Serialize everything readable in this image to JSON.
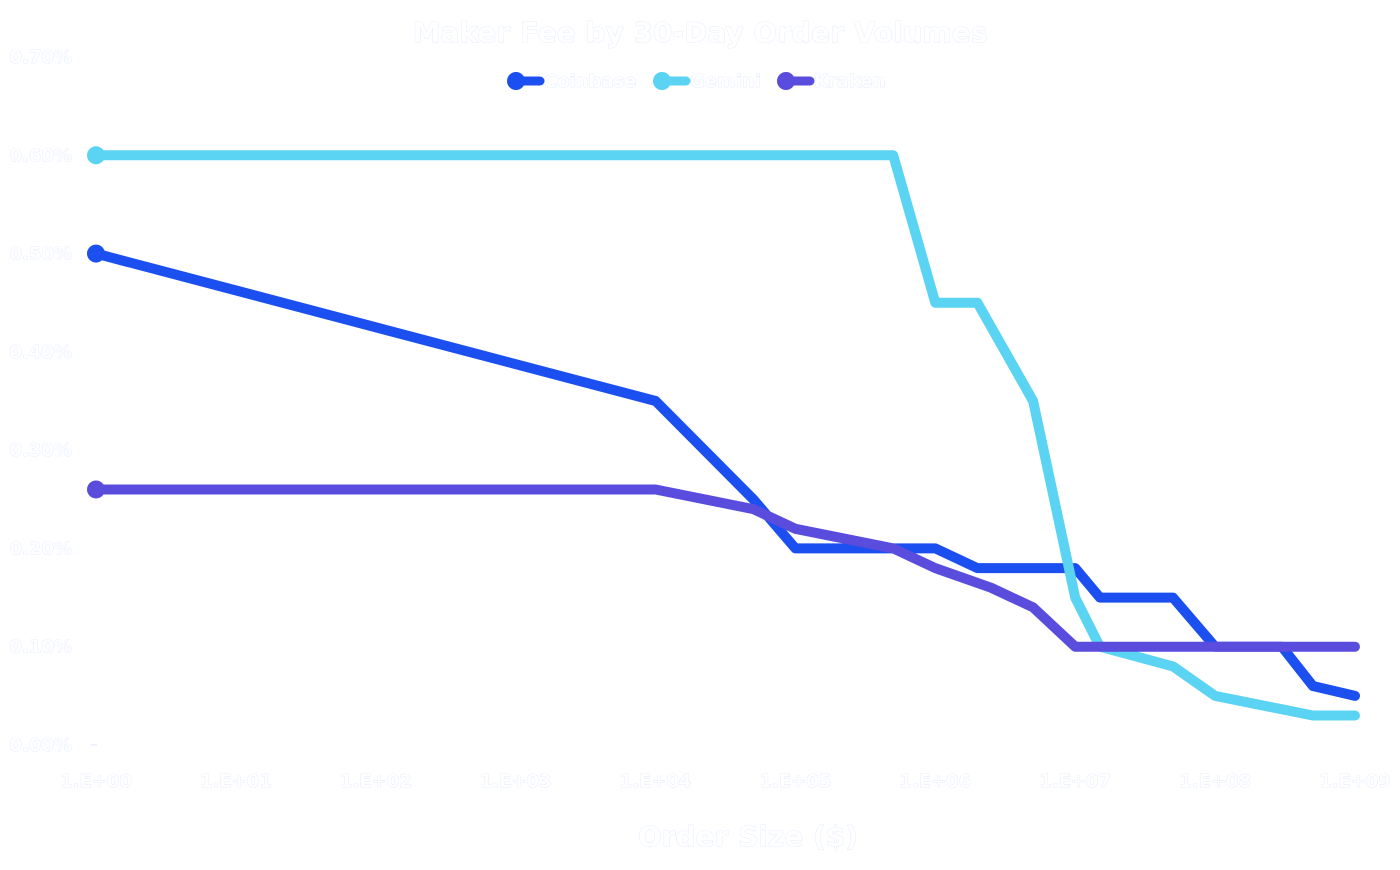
{
  "chart_data": {
    "type": "line",
    "title": "Maker Fee by 30-Day Order Volumes",
    "xlabel": "Order Size ($)",
    "ylabel": "",
    "x_scale": "log",
    "xlim": [
      1,
      1000000000
    ],
    "ylim": [
      0,
      0.007
    ],
    "x_ticks": [
      "1.E+00",
      "1.E+01",
      "1.E+02",
      "1.E+03",
      "1.E+04",
      "1.E+05",
      "1.E+06",
      "1.E+07",
      "1.E+08",
      "1.E+09"
    ],
    "y_ticks": [
      "0.00%",
      "0.10%",
      "0.20%",
      "0.30%",
      "0.40%",
      "0.50%",
      "0.60%",
      "0.70%"
    ],
    "legend_position": "top-center",
    "series": [
      {
        "name": "Coinbase",
        "color": "#1c4ff0",
        "points": [
          [
            1,
            0.005
          ],
          [
            10000,
            0.0035
          ],
          [
            50000,
            0.0025
          ],
          [
            100000,
            0.002
          ],
          [
            1000000,
            0.002
          ],
          [
            2000000,
            0.0018
          ],
          [
            10000000,
            0.0018
          ],
          [
            15000000,
            0.0015
          ],
          [
            50000000,
            0.0015
          ],
          [
            100000000,
            0.001
          ],
          [
            300000000,
            0.001
          ],
          [
            500000000,
            0.0006
          ],
          [
            1000000000,
            0.0005
          ]
        ]
      },
      {
        "name": "Gemini",
        "color": "#5ad4f2",
        "points": [
          [
            1,
            0.006
          ],
          [
            500000,
            0.006
          ],
          [
            1000000,
            0.0045
          ],
          [
            2000000,
            0.0045
          ],
          [
            5000000,
            0.0035
          ],
          [
            10000000,
            0.0015
          ],
          [
            15000000,
            0.001
          ],
          [
            50000000,
            0.0008
          ],
          [
            100000000,
            0.0005
          ],
          [
            500000000,
            0.0003
          ],
          [
            1000000000,
            0.0003
          ]
        ]
      },
      {
        "name": "Kraken",
        "color": "#5a4cdc",
        "points": [
          [
            1,
            0.0026
          ],
          [
            10000,
            0.0026
          ],
          [
            50000,
            0.0024
          ],
          [
            100000,
            0.0022
          ],
          [
            500000,
            0.002
          ],
          [
            1000000,
            0.0018
          ],
          [
            2500000,
            0.0016
          ],
          [
            5000000,
            0.0014
          ],
          [
            10000000,
            0.001
          ],
          [
            1000000000,
            0.001
          ]
        ]
      }
    ]
  }
}
